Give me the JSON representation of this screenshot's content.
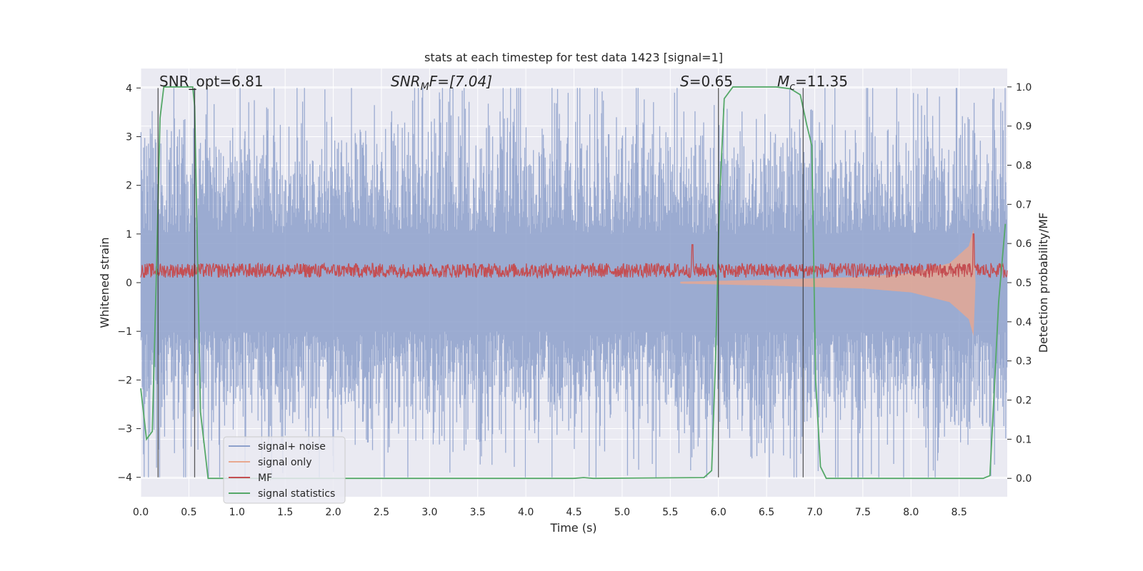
{
  "chart_data": {
    "type": "line",
    "title": "stats at each timestep for test data 1423 [signal=1]",
    "xlabel": "Time (s)",
    "ylabel": "Whitened strain",
    "y2label": "Detection probability/MF",
    "xlim": [
      0.0,
      9.0
    ],
    "ylim": [
      -4.4,
      4.4
    ],
    "y2lim": [
      -0.047,
      1.047
    ],
    "xticks": [
      "0.0",
      "0.5",
      "1.0",
      "1.5",
      "2.0",
      "2.5",
      "3.0",
      "3.5",
      "4.0",
      "4.5",
      "5.0",
      "5.5",
      "6.0",
      "6.5",
      "7.0",
      "7.5",
      "8.0",
      "8.5"
    ],
    "xtick_values": [
      0,
      0.5,
      1,
      1.5,
      2,
      2.5,
      3,
      3.5,
      4,
      4.5,
      5,
      5.5,
      6,
      6.5,
      7,
      7.5,
      8,
      8.5
    ],
    "yticks": [
      "−4",
      "−3",
      "−2",
      "−1",
      "0",
      "1",
      "2",
      "3",
      "4"
    ],
    "ytick_values": [
      -4,
      -3,
      -2,
      -1,
      0,
      1,
      2,
      3,
      4
    ],
    "y2ticks": [
      "0.0",
      "0.1",
      "0.2",
      "0.3",
      "0.4",
      "0.5",
      "0.6",
      "0.7",
      "0.8",
      "0.9",
      "1.0"
    ],
    "y2tick_values": [
      0,
      0.1,
      0.2,
      0.3,
      0.4,
      0.5,
      0.6,
      0.7,
      0.8,
      0.9,
      1.0
    ],
    "grid": true,
    "legend_position": "lower-left",
    "annotations": [
      {
        "id": "snr-opt",
        "text": "SNR_opt=6.81",
        "x": 0.19
      },
      {
        "id": "snr-mf",
        "text": "SNR_MF=[7.04]",
        "x": 2.6
      },
      {
        "id": "s-value",
        "text": "S=0.65",
        "x": 5.6
      },
      {
        "id": "mc-value",
        "text": "M_c=11.35",
        "x": 6.6
      }
    ],
    "annotation_parts": {
      "snr_mf_main": "SNR",
      "snr_mf_sub": "M",
      "snr_mf_rest": "F=[7.04]",
      "s_main": "S",
      "s_rest": "=0.65",
      "mc_main": "M",
      "mc_sub": "c",
      "mc_rest": "=11.35"
    },
    "vertical_lines_x": [
      0.18,
      0.56,
      6.0,
      6.88
    ],
    "series": [
      {
        "name": "signal+ noise",
        "color": "#8da0cb",
        "kind": "noise",
        "amplitude_typical": 1.6,
        "amplitude_peak": 4.0,
        "axis": "left"
      },
      {
        "name": "signal only",
        "color": "#e8a890",
        "kind": "chirp",
        "axis": "left",
        "envelope": [
          [
            5.6,
            0.02
          ],
          [
            6.5,
            0.06
          ],
          [
            7.5,
            0.12
          ],
          [
            8.0,
            0.2
          ],
          [
            8.4,
            0.4
          ],
          [
            8.6,
            0.75
          ],
          [
            8.65,
            1.1
          ],
          [
            8.67,
            0.0
          ]
        ]
      },
      {
        "name": "MF",
        "color": "#c44e52",
        "kind": "mf",
        "axis": "left",
        "baseline": 0.25,
        "spread": 0.15,
        "spikes": [
          [
            5.73,
            0.78
          ],
          [
            8.65,
            1.0
          ]
        ]
      },
      {
        "name": "signal statistics",
        "color": "#55a868",
        "kind": "step",
        "axis": "right",
        "points": [
          [
            0.0,
            0.23
          ],
          [
            0.06,
            0.1
          ],
          [
            0.12,
            0.12
          ],
          [
            0.16,
            0.5
          ],
          [
            0.2,
            0.92
          ],
          [
            0.24,
            1.0
          ],
          [
            0.3,
            1.0
          ],
          [
            0.54,
            1.0
          ],
          [
            0.56,
            0.95
          ],
          [
            0.62,
            0.17
          ],
          [
            0.7,
            0.0
          ],
          [
            4.5,
            0.0
          ],
          [
            4.6,
            0.002
          ],
          [
            4.7,
            0.0
          ],
          [
            5.85,
            0.002
          ],
          [
            5.93,
            0.02
          ],
          [
            5.97,
            0.3
          ],
          [
            6.01,
            0.7
          ],
          [
            6.06,
            0.97
          ],
          [
            6.15,
            1.0
          ],
          [
            6.6,
            1.0
          ],
          [
            6.75,
            0.995
          ],
          [
            6.85,
            0.98
          ],
          [
            6.92,
            0.9
          ],
          [
            6.97,
            0.85
          ],
          [
            7.01,
            0.25
          ],
          [
            7.06,
            0.03
          ],
          [
            7.12,
            0.0
          ],
          [
            8.75,
            0.0
          ],
          [
            8.82,
            0.007
          ],
          [
            8.86,
            0.2
          ],
          [
            8.91,
            0.45
          ],
          [
            8.98,
            0.65
          ]
        ]
      }
    ]
  }
}
